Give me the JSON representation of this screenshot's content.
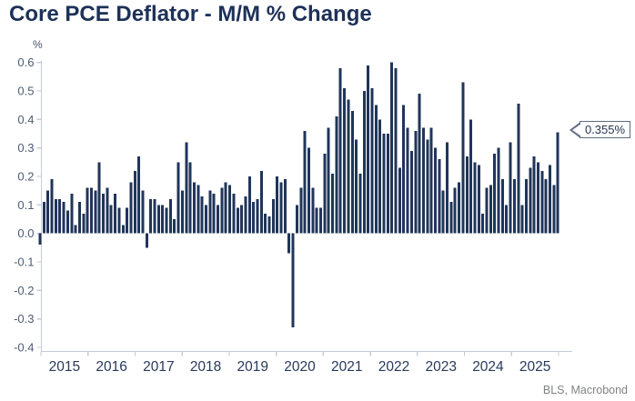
{
  "title": "Core PCE Deflator - M/M % Change",
  "y_axis_unit": "%",
  "source": "BLS, Macrobond",
  "callout": {
    "label": "0.355%"
  },
  "colors": {
    "title": "#1d3157",
    "bar": "#20355a",
    "axis_line": "#c5ccd6",
    "y_tick_label": "#4d5c73",
    "x_tick_label": "#27395c",
    "source_text": "#808285",
    "callout_border": "#5d6c81",
    "callout_text": "#28344e",
    "background": "#ffffff"
  },
  "chart_data": {
    "type": "bar",
    "title": "Core PCE Deflator - M/M % Change",
    "xlabel": "",
    "ylabel": "%",
    "ylim": [
      -0.4,
      0.6
    ],
    "grid": false,
    "legend_position": "none",
    "yticks": [
      "0.6",
      "0.5",
      "0.4",
      "0.3",
      "0.2",
      "0.1",
      "0.0",
      "-0.1",
      "-0.2",
      "-0.3",
      "-0.4"
    ],
    "xticks_years": [
      "2015",
      "2016",
      "2017",
      "2018",
      "2019",
      "2020",
      "2021",
      "2022",
      "2023",
      "2024",
      "2025"
    ],
    "frequency": "monthly",
    "start_month": "2014-12",
    "end_month": "2025-11",
    "last_value_label": "0.355%",
    "values": [
      -0.04,
      0.11,
      0.15,
      0.19,
      0.12,
      0.12,
      0.11,
      0.08,
      0.14,
      0.03,
      0.11,
      0.07,
      0.16,
      0.16,
      0.15,
      0.25,
      0.14,
      0.16,
      0.1,
      0.14,
      0.09,
      0.03,
      0.09,
      0.18,
      0.22,
      0.27,
      0.15,
      -0.05,
      0.12,
      0.12,
      0.1,
      0.1,
      0.09,
      0.12,
      0.05,
      0.25,
      0.15,
      0.32,
      0.25,
      0.18,
      0.17,
      0.13,
      0.1,
      0.15,
      0.14,
      0.1,
      0.16,
      0.18,
      0.17,
      0.14,
      0.09,
      0.1,
      0.13,
      0.2,
      0.11,
      0.12,
      0.22,
      0.07,
      0.06,
      0.12,
      0.2,
      0.18,
      0.19,
      -0.07,
      -0.33,
      0.1,
      0.16,
      0.36,
      0.3,
      0.16,
      0.09,
      0.09,
      0.28,
      0.37,
      0.21,
      0.41,
      0.58,
      0.51,
      0.47,
      0.43,
      0.33,
      0.21,
      0.5,
      0.59,
      0.51,
      0.45,
      0.4,
      0.35,
      0.35,
      0.6,
      0.58,
      0.23,
      0.45,
      0.37,
      0.29,
      0.36,
      0.49,
      0.37,
      0.33,
      0.37,
      0.3,
      0.26,
      0.15,
      0.32,
      0.11,
      0.16,
      0.18,
      0.53,
      0.27,
      0.4,
      0.25,
      0.24,
      0.07,
      0.16,
      0.17,
      0.28,
      0.3,
      0.19,
      0.1,
      0.32,
      0.19,
      0.455,
      0.1,
      0.19,
      0.23,
      0.27,
      0.25,
      0.22,
      0.19,
      0.24,
      0.17,
      0.355
    ]
  }
}
